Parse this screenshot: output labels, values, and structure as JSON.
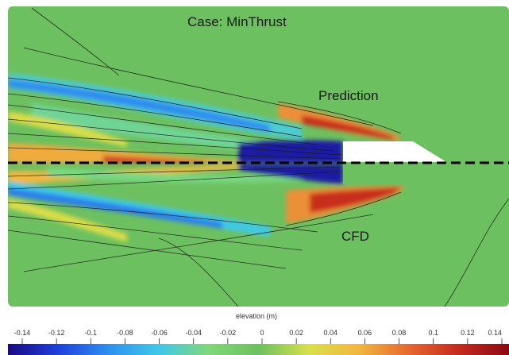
{
  "case_title": "Case: MinThrust",
  "prediction_label": "Prediction",
  "cfd_label": "CFD",
  "chart_data": {
    "type": "heatmap",
    "title": "Case: MinThrust",
    "halves": [
      "Prediction",
      "CFD"
    ],
    "colorbar": {
      "label": "elevation (m)",
      "range": [
        -0.14,
        0.14
      ],
      "ticks": [
        -0.14,
        -0.12,
        -0.1,
        -0.08,
        -0.06,
        -0.04,
        -0.02,
        0,
        0.02,
        0.04,
        0.06,
        0.08,
        0.1,
        0.12,
        0.14
      ],
      "tick_labels": [
        "-0.14",
        "-0.12",
        "-0.1",
        "-0.08",
        "-0.06",
        "-0.04",
        "-0.02",
        "0",
        "0.02",
        "0.04",
        "0.06",
        "0.08",
        "0.1",
        "0.12",
        "0.14"
      ],
      "colormap": [
        "#1a0a82",
        "#1f3fdc",
        "#2e8ff0",
        "#3fc8e8",
        "#7fd87a",
        "#6cc060",
        "#d8e04a",
        "#f2b640",
        "#e6682e",
        "#c62a1e",
        "#8a0a14"
      ]
    },
    "colors": {
      "background": "#6dc05f",
      "hull": "#ffffff",
      "centerline": "#000000"
    }
  }
}
